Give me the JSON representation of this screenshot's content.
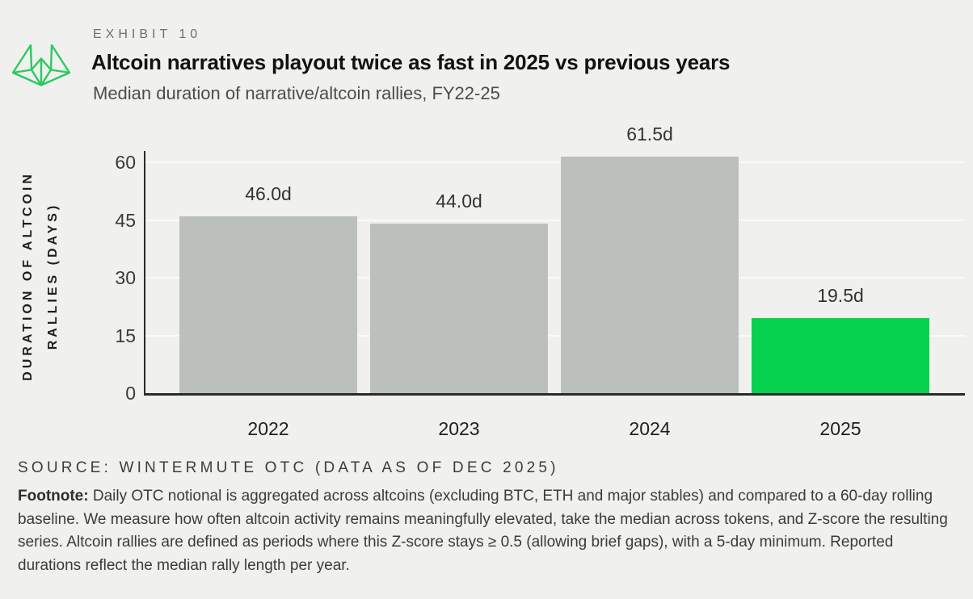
{
  "header": {
    "exhibit_label": "EXHIBIT 10",
    "title": "Altcoin narratives playout twice as fast in 2025 vs previous years",
    "subtitle": "Median duration of narrative/altcoin rallies, FY22-25",
    "logo_icon": "wintermute-logo",
    "logo_color": "#2bc961"
  },
  "chart_data": {
    "type": "bar",
    "title": "Altcoin narratives playout twice as fast in 2025 vs previous years",
    "subtitle": "Median duration of narrative/altcoin rallies, FY22-25",
    "categories": [
      "2022",
      "2023",
      "2024",
      "2025"
    ],
    "values": [
      46.0,
      44.0,
      61.5,
      19.5
    ],
    "value_labels": [
      "46.0d",
      "44.0d",
      "61.5d",
      "19.5d"
    ],
    "bar_colors": [
      "#bcc0bd",
      "#bcc0bd",
      "#bcc0bd",
      "#07d24d"
    ],
    "default_bar_color": "#bcc0bd",
    "highlight_color": "#07d24d",
    "ylabel_line1": "DURATION OF ALTCOIN",
    "ylabel_line2": "RALLIES (DAYS)",
    "xlabel": "",
    "yticks": [
      60,
      45,
      30,
      15,
      0
    ],
    "ylim": [
      0,
      63
    ],
    "grid": true,
    "gridline_color": "#fafaf8",
    "legend": false
  },
  "source": {
    "text": "SOURCE: WINTERMUTE OTC (DATA AS OF DEC 2025)"
  },
  "footnote": {
    "label": "Footnote:",
    "text": "Daily OTC notional is aggregated across altcoins (excluding BTC, ETH and major stables) and compared to a 60-day rolling baseline. We measure how often altcoin activity remains meaningfully elevated, take the median across tokens, and Z-score the resulting series. Altcoin rallies are defined as periods where this Z-score stays ≥ 0.5 (allowing brief gaps), with a 5-day minimum. Reported durations reflect the median rally length per year."
  }
}
